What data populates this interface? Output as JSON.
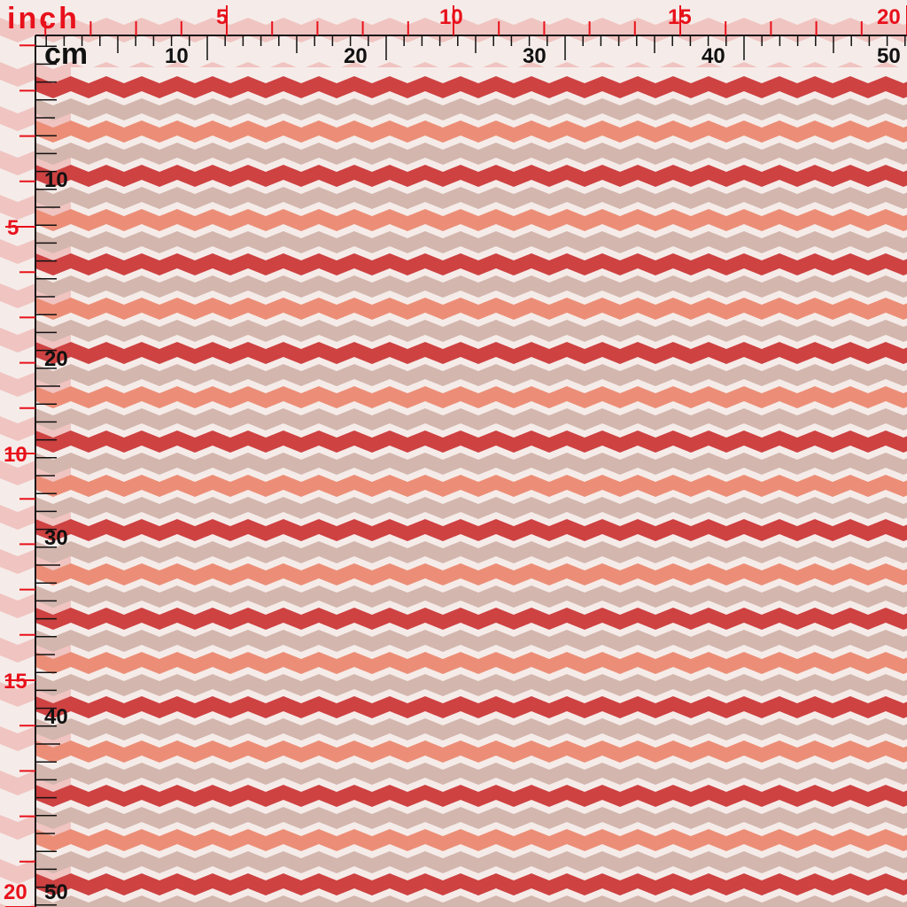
{
  "fabric": {
    "pattern": "chevron-stripes",
    "colors": {
      "red": "#cc3b3b",
      "salmon": "#ec8a72",
      "taupe": "#d2b3aa",
      "white": "#f5ece9",
      "pink_border": "#f0c2bf"
    }
  },
  "ruler": {
    "inch_unit": "inch",
    "cm_unit": "cm",
    "top_inch_labels": [
      "5",
      "10",
      "15",
      "20"
    ],
    "top_cm_labels": [
      "10",
      "20",
      "30",
      "40",
      "50"
    ],
    "left_inch_labels": [
      "5",
      "10",
      "15",
      "20"
    ],
    "left_cm_labels": [
      "10",
      "20",
      "30",
      "40",
      "50"
    ],
    "inch_color": "#e8111b",
    "cm_color": "#111111"
  }
}
